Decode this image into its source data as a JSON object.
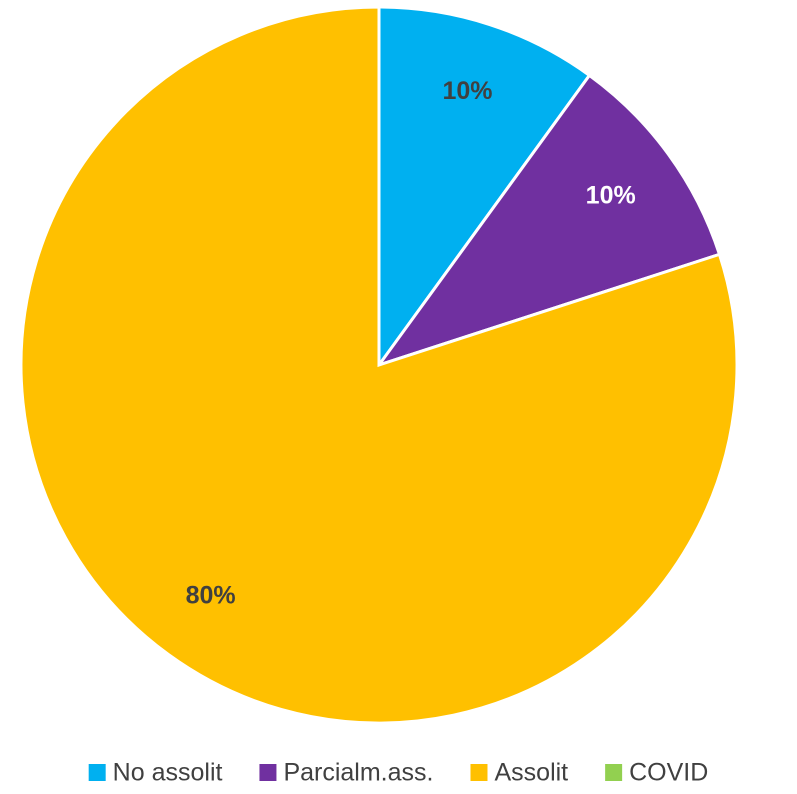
{
  "chart_data": {
    "type": "pie",
    "categories": [
      "No assolit",
      "Parcialm.ass.",
      "Assolit",
      "COVID"
    ],
    "values": [
      10,
      10,
      80,
      0
    ],
    "value_labels": [
      "10%",
      "10%",
      "80%",
      null
    ],
    "colors": [
      "#00b0f0",
      "#7030a0",
      "#ffc000",
      "#92d050"
    ],
    "legend": "bottom"
  }
}
